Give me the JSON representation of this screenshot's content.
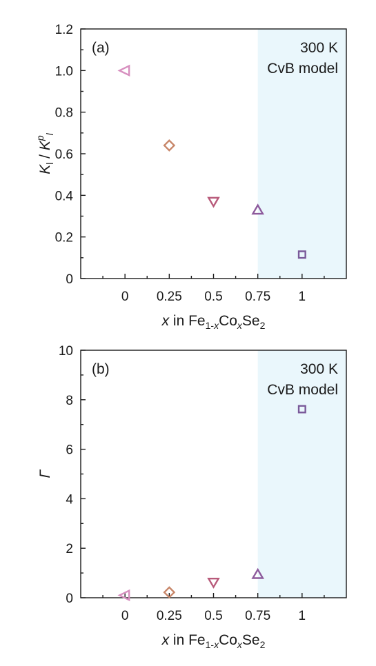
{
  "chart_data": [
    {
      "type": "scatter",
      "panel_label": "(a)",
      "annotation_lines": [
        "300 K",
        "CvB model"
      ],
      "xlabel": "x in Fe1-xCoxSe2",
      "ylabel": "Kl / Kp",
      "xlim": [
        -0.25,
        1.25
      ],
      "ylim": [
        0,
        1.2
      ],
      "x_ticks": [
        0,
        0.25,
        0.5,
        0.75,
        1
      ],
      "x_tick_labels": [
        "0",
        "0.25",
        "0.5",
        "0.75",
        "1"
      ],
      "y_ticks": [
        0,
        0.2,
        0.4,
        0.6,
        0.8,
        1.0,
        1.2
      ],
      "y_tick_labels": [
        "0",
        "0.2",
        "0.4",
        "0.6",
        "0.8",
        "1.0",
        "1.2"
      ],
      "shaded_region": {
        "x_start": 0.75,
        "x_end": 1.25,
        "color": "#eaf7fc"
      },
      "points": [
        {
          "x": 0,
          "y": 1.0,
          "marker": "triangle-left",
          "color": "#d78fbf"
        },
        {
          "x": 0.25,
          "y": 0.64,
          "marker": "diamond",
          "color": "#c8876a"
        },
        {
          "x": 0.5,
          "y": 0.37,
          "marker": "triangle-down",
          "color": "#b85a7a"
        },
        {
          "x": 0.75,
          "y": 0.33,
          "marker": "triangle-up",
          "color": "#8d5a9c"
        },
        {
          "x": 1,
          "y": 0.115,
          "marker": "square",
          "color": "#7a5a9a"
        }
      ]
    },
    {
      "type": "scatter",
      "panel_label": "(b)",
      "annotation_lines": [
        "300 K",
        "CvB model"
      ],
      "xlabel": "x in Fe1-xCoxSe2",
      "ylabel": "Γ",
      "xlim": [
        -0.25,
        1.25
      ],
      "ylim": [
        0,
        10
      ],
      "x_ticks": [
        0,
        0.25,
        0.5,
        0.75,
        1
      ],
      "x_tick_labels": [
        "0",
        "0.25",
        "0.5",
        "0.75",
        "1"
      ],
      "y_ticks": [
        0,
        2,
        4,
        6,
        8,
        10
      ],
      "y_tick_labels": [
        "0",
        "2",
        "4",
        "6",
        "8",
        "10"
      ],
      "shaded_region": {
        "x_start": 0.75,
        "x_end": 1.25,
        "color": "#eaf7fc"
      },
      "points": [
        {
          "x": 0,
          "y": 0.1,
          "marker": "triangle-left",
          "color": "#d78fbf"
        },
        {
          "x": 0.25,
          "y": 0.22,
          "marker": "diamond",
          "color": "#c8876a"
        },
        {
          "x": 0.5,
          "y": 0.62,
          "marker": "triangle-down",
          "color": "#b85a7a"
        },
        {
          "x": 0.75,
          "y": 0.95,
          "marker": "triangle-up",
          "color": "#8d5a9c"
        },
        {
          "x": 1,
          "y": 7.62,
          "marker": "square",
          "color": "#7a5a9a"
        }
      ]
    }
  ]
}
